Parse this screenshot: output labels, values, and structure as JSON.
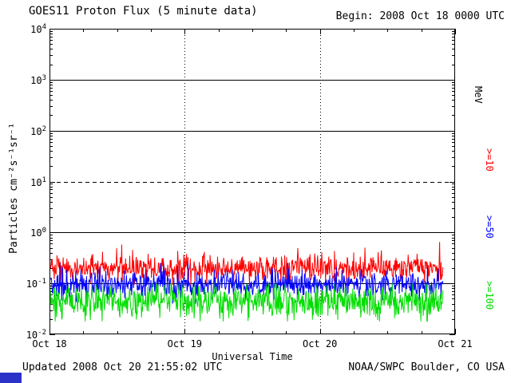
{
  "header": {
    "title": "GOES11 Proton Flux (5 minute data)",
    "begin_label": "Begin: 2008 Oct 18 0000 UTC"
  },
  "footer": {
    "updated": "Updated 2008 Oct 20 21:55:02 UTC",
    "credit": "NOAA/SWPC Boulder, CO USA"
  },
  "decor": {
    "corner_box_color": "#2b32c8"
  },
  "chart_data": {
    "type": "line",
    "title": "GOES11 Proton Flux (5 minute data)",
    "xlabel": "Universal Time",
    "ylabel": "Particles cm⁻²s⁻¹sr⁻¹",
    "right_axis_label": "MeV",
    "x_ticks": [
      "Oct 18",
      "Oct 19",
      "Oct 20",
      "Oct 21"
    ],
    "x_range_days": 3,
    "y_scale": "log",
    "y_log_range": [
      -2,
      4
    ],
    "y_tick_exponents": [
      4,
      3,
      2,
      1,
      0,
      -1,
      -2
    ],
    "hlines_solid": [
      1000,
      100,
      1,
      0.1
    ],
    "hlines_dashed": [
      10
    ],
    "vlines_dotted_at_day": [
      1,
      2
    ],
    "grid_color": "#000000",
    "samples_per_day": 288,
    "data_end_day": 2.913,
    "legend_position": "right-vertical",
    "series": [
      {
        "name": ">=10",
        "color": "#ff0000",
        "base_flux": 0.2,
        "log10_sigma": 0.13,
        "min": 0.09,
        "max": 0.65
      },
      {
        "name": ">=50",
        "color": "#0000ff",
        "base_flux": 0.095,
        "log10_sigma": 0.13,
        "min": 0.04,
        "max": 0.25
      },
      {
        "name": ">=100",
        "color": "#00dd00",
        "base_flux": 0.045,
        "log10_sigma": 0.16,
        "min": 0.018,
        "max": 0.1
      }
    ]
  }
}
